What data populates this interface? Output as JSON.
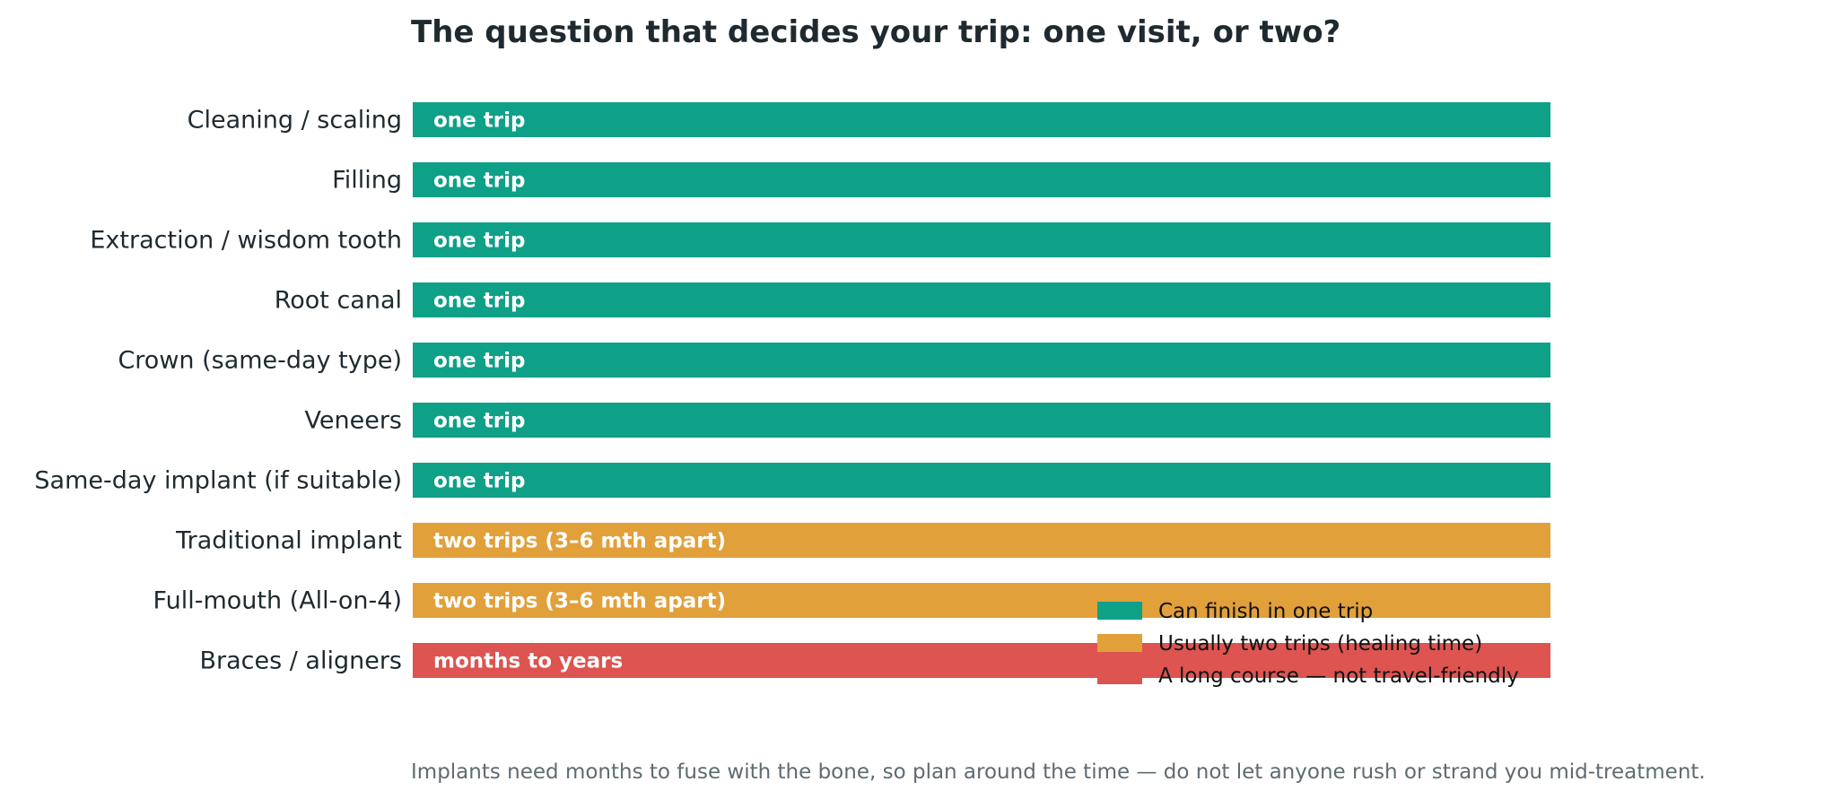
{
  "chart_data": {
    "type": "bar",
    "orientation": "horizontal",
    "title": "The question that decides your trip: one visit, or two?",
    "categories": [
      "Cleaning / scaling",
      "Filling",
      "Extraction / wisdom tooth",
      "Root canal",
      "Crown (same-day type)",
      "Veneers",
      "Same-day implant (if suitable)",
      "Traditional implant",
      "Full-mouth (All-on-4)",
      "Braces / aligners"
    ],
    "values": [
      1,
      1,
      1,
      1,
      1,
      1,
      1,
      1,
      1,
      1
    ],
    "bar_labels": [
      "one trip",
      "one trip",
      "one trip",
      "one trip",
      "one trip",
      "one trip",
      "one trip",
      "two trips (3–6 mth apart)",
      "two trips (3–6 mth apart)",
      "months to years"
    ],
    "groups": [
      "one",
      "one",
      "one",
      "one",
      "one",
      "one",
      "one",
      "two",
      "two",
      "long"
    ],
    "colors": {
      "one": "#0fa088",
      "two": "#e1a03a",
      "long": "#dd5450"
    },
    "legend": [
      {
        "key": "one",
        "label": "Can finish in one trip"
      },
      {
        "key": "two",
        "label": "Usually two trips (healing time)"
      },
      {
        "key": "long",
        "label": "A long course — not travel-friendly"
      }
    ],
    "legend_position": "bottom-right",
    "xlim": [
      0,
      1
    ],
    "grid": false,
    "axes_visible": false,
    "xlabel": "",
    "ylabel": ""
  },
  "footnote": "Implants need months to fuse with the bone, so plan around the time — do not let anyone rush or strand you mid-treatment."
}
